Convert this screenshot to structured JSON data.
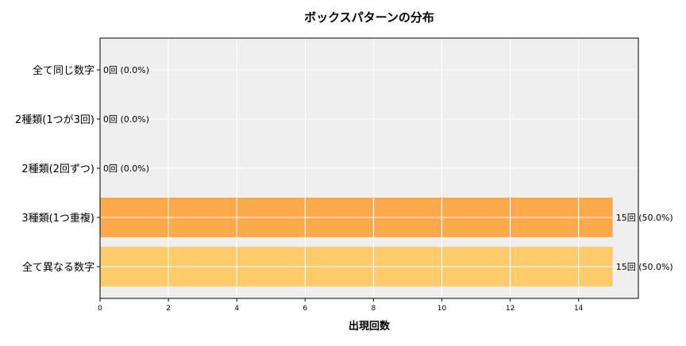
{
  "chart_data": {
    "type": "bar",
    "orientation": "horizontal",
    "title": "ボックスパターンの分布",
    "xlabel": "出現回数",
    "ylabel": "",
    "categories": [
      "全て同じ数字",
      "2種類(1つが3回)",
      "2種類(2回ずつ)",
      "3種類(1つ重複)",
      "全て異なる数字"
    ],
    "values": [
      0,
      0,
      0,
      15,
      15
    ],
    "data_labels": [
      "0回 (0.0%)",
      "0回 (0.0%)",
      "0回 (0.0%)",
      "15回 (50.0%)",
      "15回 (50.0%)"
    ],
    "colors": [
      "#ffaa4a",
      "#ffaa4a",
      "#ffaa4a",
      "#ffaa4a",
      "#ffcb6b"
    ],
    "xlim": [
      0,
      15.75
    ],
    "xticks": [
      0,
      2,
      4,
      6,
      8,
      10,
      12,
      14
    ],
    "grid": true,
    "background": "#efefef"
  }
}
